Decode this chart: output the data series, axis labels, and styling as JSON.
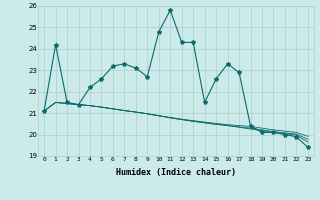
{
  "xlabel": "Humidex (Indice chaleur)",
  "x": [
    0,
    1,
    2,
    3,
    4,
    5,
    6,
    7,
    8,
    9,
    10,
    11,
    12,
    13,
    14,
    15,
    16,
    17,
    18,
    19,
    20,
    21,
    22,
    23
  ],
  "y_main": [
    21.1,
    24.2,
    21.5,
    21.4,
    22.2,
    22.6,
    23.2,
    23.3,
    23.1,
    22.7,
    24.8,
    25.8,
    24.3,
    24.3,
    21.5,
    22.6,
    23.3,
    22.9,
    20.4,
    20.1,
    20.1,
    20.0,
    19.9,
    19.4
  ],
  "y_line2": [
    21.1,
    21.5,
    21.45,
    21.4,
    21.35,
    21.28,
    21.2,
    21.12,
    21.05,
    20.97,
    20.88,
    20.8,
    20.72,
    20.65,
    20.58,
    20.52,
    20.46,
    20.42,
    20.38,
    20.3,
    20.22,
    20.16,
    20.1,
    19.92
  ],
  "y_line3": [
    21.1,
    21.5,
    21.45,
    21.4,
    21.35,
    21.28,
    21.2,
    21.12,
    21.05,
    20.97,
    20.88,
    20.78,
    20.7,
    20.62,
    20.55,
    20.48,
    20.42,
    20.36,
    20.3,
    20.22,
    20.14,
    20.08,
    20.02,
    19.78
  ],
  "y_line4": [
    21.1,
    21.5,
    21.45,
    21.4,
    21.35,
    21.28,
    21.2,
    21.12,
    21.05,
    20.97,
    20.88,
    20.78,
    20.7,
    20.62,
    20.55,
    20.48,
    20.42,
    20.34,
    20.26,
    20.18,
    20.1,
    20.04,
    19.98,
    19.65
  ],
  "ylim": [
    19,
    26
  ],
  "xlim": [
    -0.5,
    23.5
  ],
  "yticks": [
    19,
    20,
    21,
    22,
    23,
    24,
    25,
    26
  ],
  "xticks": [
    0,
    1,
    2,
    3,
    4,
    5,
    6,
    7,
    8,
    9,
    10,
    11,
    12,
    13,
    14,
    15,
    16,
    17,
    18,
    19,
    20,
    21,
    22,
    23
  ],
  "line_color": "#0a6b6b",
  "bg_color": "#cdeaea",
  "grid_color": "#a8cece",
  "marker": "*",
  "markersize": 3,
  "linewidth": 0.8
}
